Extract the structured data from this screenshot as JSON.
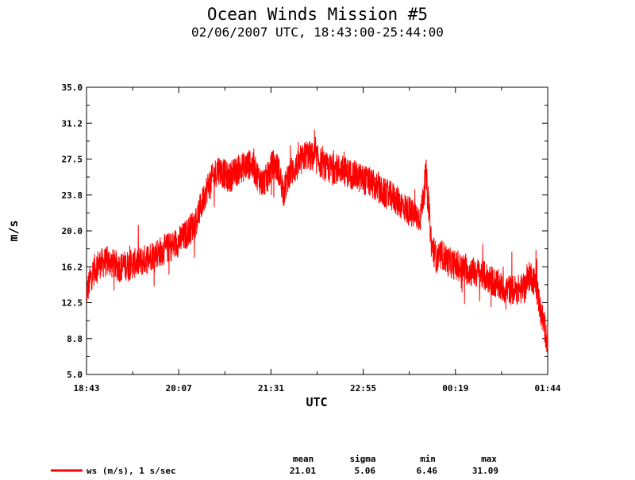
{
  "chart_data": {
    "type": "line",
    "title": "Ocean Winds Mission #5",
    "subtitle": "02/06/2007  UTC, 18:43:00-25:44:00",
    "xlabel": "UTC",
    "ylabel": "m/s",
    "ylim": [
      5.0,
      35.0
    ],
    "xlim_minutes": [
      0,
      421
    ],
    "y_ticks": [
      "35.0",
      "31.2",
      "27.5",
      "23.8",
      "20.0",
      "16.2",
      "12.5",
      "8.8",
      "5.0"
    ],
    "x_ticks": [
      "18:43",
      "20:07",
      "21:31",
      "22:55",
      "00:19",
      "01:44"
    ],
    "series": [
      {
        "name": "ws (m/s), 1 s/sec",
        "color": "#ff0000",
        "x_minutes": [
          0,
          5,
          10,
          20,
          30,
          40,
          50,
          60,
          70,
          80,
          90,
          100,
          110,
          120,
          130,
          140,
          150,
          155,
          160,
          165,
          170,
          175,
          180,
          185,
          190,
          195,
          200,
          210,
          220,
          230,
          240,
          250,
          260,
          270,
          280,
          290,
          300,
          305,
          310,
          315,
          320,
          325,
          330,
          340,
          350,
          360,
          370,
          380,
          390,
          400,
          405,
          410,
          415,
          421
        ],
        "values": [
          13.5,
          15.5,
          16.5,
          16.8,
          16.2,
          16.5,
          16.8,
          17.5,
          18.0,
          18.5,
          19.5,
          21.0,
          24.5,
          26.5,
          25.5,
          26.5,
          27.0,
          26.0,
          25.0,
          25.5,
          27.0,
          26.5,
          24.0,
          26.0,
          26.5,
          27.0,
          28.0,
          27.5,
          26.5,
          26.5,
          26.0,
          25.5,
          25.0,
          24.0,
          23.5,
          22.5,
          21.5,
          21.5,
          26.0,
          18.5,
          17.0,
          17.5,
          16.8,
          16.2,
          15.8,
          15.5,
          14.8,
          14.0,
          13.8,
          14.0,
          15.5,
          14.5,
          11.5,
          8.5
        ]
      }
    ],
    "stats": {
      "headers": [
        "mean",
        "sigma",
        "min",
        "max"
      ],
      "values": [
        "21.01",
        "5.06",
        "6.46",
        "31.09"
      ]
    }
  }
}
